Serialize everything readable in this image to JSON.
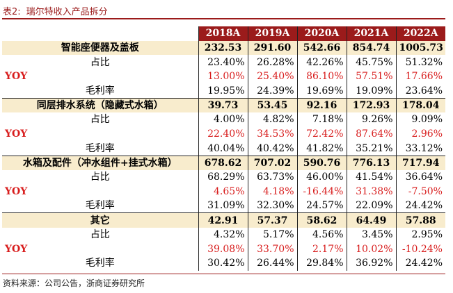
{
  "caption": {
    "label": "表2:",
    "title": "瑞尔特收入产品拆分"
  },
  "columns": [
    "2018A",
    "2019A",
    "2020A",
    "2021A",
    "2022A"
  ],
  "rows": [
    {
      "kind": "group",
      "name": "智能座便器及盖板",
      "values": [
        "232.53",
        "291.60",
        "542.66",
        "854.74",
        "1005.73"
      ]
    },
    {
      "kind": "sub",
      "name": "占比",
      "values": [
        "23.40%",
        "26.28%",
        "42.26%",
        "45.75%",
        "51.32%"
      ]
    },
    {
      "kind": "red",
      "name": "YOY",
      "values": [
        "13.00%",
        "25.40%",
        "86.10%",
        "57.51%",
        "17.66%"
      ]
    },
    {
      "kind": "sub",
      "name": "毛利率",
      "values": [
        "19.95%",
        "24.39%",
        "19.69%",
        "19.09%",
        "23.64%"
      ]
    },
    {
      "kind": "group",
      "name": "同层排水系统（隐藏式水箱）",
      "values": [
        "39.73",
        "53.45",
        "92.16",
        "172.93",
        "178.04"
      ]
    },
    {
      "kind": "sub",
      "name": "占比",
      "values": [
        "4.00%",
        "4.82%",
        "7.18%",
        "9.26%",
        "9.09%"
      ]
    },
    {
      "kind": "red",
      "name": "YOY",
      "values": [
        "22.40%",
        "34.53%",
        "72.42%",
        "87.64%",
        "2.96%"
      ]
    },
    {
      "kind": "sub",
      "name": "毛利率",
      "values": [
        "40.04%",
        "40.42%",
        "41.82%",
        "35.21%",
        "33.12%"
      ]
    },
    {
      "kind": "group",
      "name": "水箱及配件（冲水组件+挂式水箱）",
      "values": [
        "678.62",
        "707.02",
        "590.76",
        "776.13",
        "717.94"
      ]
    },
    {
      "kind": "sub",
      "name": "占比",
      "values": [
        "68.29%",
        "63.73%",
        "46.00%",
        "41.54%",
        "36.64%"
      ]
    },
    {
      "kind": "red",
      "name": "YOY",
      "values": [
        "4.65%",
        "4.18%",
        "-16.44%",
        "31.38%",
        "-7.50%"
      ]
    },
    {
      "kind": "sub",
      "name": "毛利率",
      "values": [
        "31.09%",
        "32.30%",
        "24.57%",
        "22.09%",
        "24.42%"
      ]
    },
    {
      "kind": "group",
      "name": "其它",
      "values": [
        "42.91",
        "57.37",
        "58.62",
        "64.49",
        "57.88"
      ]
    },
    {
      "kind": "sub",
      "name": "占比",
      "values": [
        "4.32%",
        "5.17%",
        "4.56%",
        "3.45%",
        "2.95%"
      ]
    },
    {
      "kind": "red",
      "name": "YOY",
      "values": [
        "39.08%",
        "33.70%",
        "2.17%",
        "10.02%",
        "-10.24%"
      ]
    },
    {
      "kind": "sub",
      "name": "毛利率",
      "values": [
        "30.42%",
        "26.44%",
        "29.84%",
        "36.92%",
        "24.42%"
      ]
    }
  ],
  "source": "资料来源：公司公告，浙商证券研究所"
}
